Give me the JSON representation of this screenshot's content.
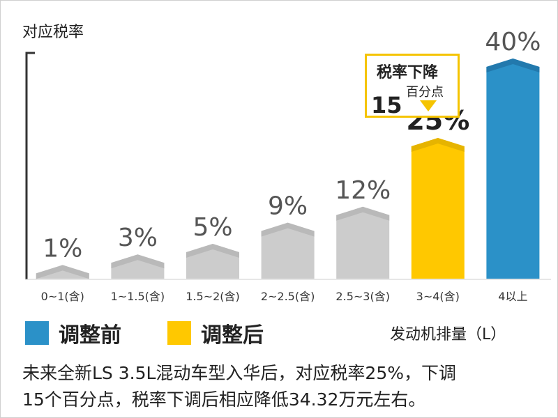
{
  "chart_data": {
    "type": "bar",
    "ylabel": "对应税率",
    "xlabel": "发动机排量（L）",
    "categories": [
      "0~1(含)",
      "1~1.5(含)",
      "1.5~2(含)",
      "2~2.5(含)",
      "2.5~3(含)",
      "3~4(含)",
      "4以上"
    ],
    "values": [
      1,
      3,
      5,
      9,
      12,
      25,
      40
    ],
    "value_labels": [
      "1%",
      "3%",
      "5%",
      "9%",
      "12%",
      "25%",
      "40%"
    ],
    "ylim": [
      0,
      40
    ],
    "grid": false,
    "series": [
      {
        "name": "调整前",
        "color": "#2b91c8"
      },
      {
        "name": "调整后",
        "color": "#ffc800"
      }
    ],
    "bar_colors": [
      "#cccccc",
      "#cccccc",
      "#cccccc",
      "#cccccc",
      "#cccccc",
      "#ffc800",
      "#2b91c8"
    ],
    "bar_top_colors": [
      "#b9b9b9",
      "#b9b9b9",
      "#b9b9b9",
      "#b9b9b9",
      "#b9b9b9",
      "#e6b400",
      "#2279ad"
    ],
    "annotation": {
      "line1": "税率下降",
      "line2": "百分点",
      "number": "15"
    }
  },
  "legend": {
    "before_label": "调整前",
    "after_label": "调整后",
    "before_color": "#2b91c8",
    "after_color": "#ffc800"
  },
  "note": {
    "line1": "未来全新LS 3.5L混动车型入华后，对应税率25%，下调",
    "line2": "15个百分点，税率下调后相应降低34.32万元左右。"
  }
}
